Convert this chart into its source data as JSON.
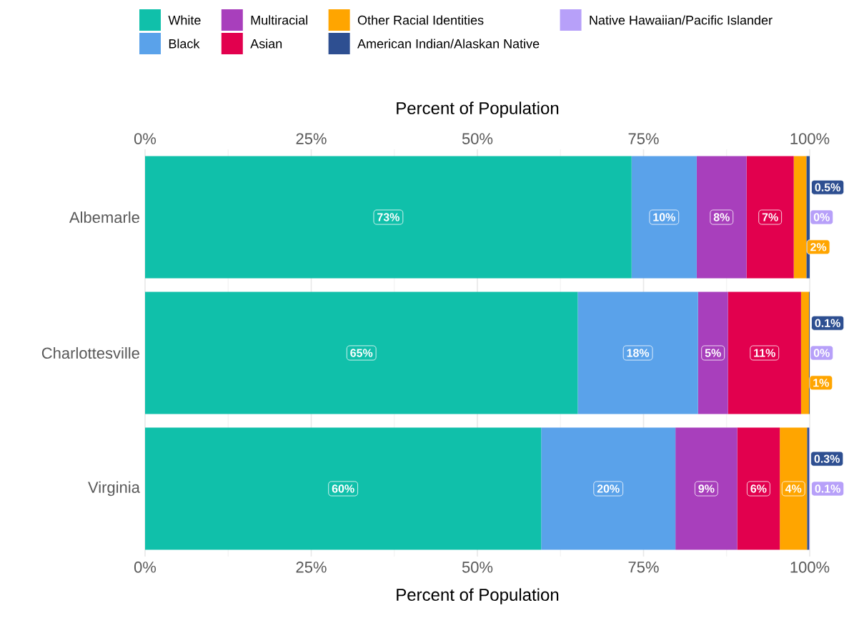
{
  "chart_data": {
    "type": "bar",
    "orientation": "horizontal",
    "stacked": true,
    "categories": [
      "Albemarle",
      "Charlottesville",
      "Virginia"
    ],
    "xlabel": "Percent of Population",
    "x2label": "Percent of Population",
    "xlim": [
      0,
      100
    ],
    "xticks": [
      {
        "value": 0,
        "label": "0%"
      },
      {
        "value": 25,
        "label": "25%"
      },
      {
        "value": 50,
        "label": "50%"
      },
      {
        "value": 75,
        "label": "75%"
      },
      {
        "value": 100,
        "label": "100%"
      }
    ],
    "x2lim": [
      0,
      100
    ],
    "x2ticks": [
      {
        "value": 0,
        "label": "0%"
      },
      {
        "value": 25,
        "label": "25%"
      },
      {
        "value": 50,
        "label": "50%"
      },
      {
        "value": 75,
        "label": "75%"
      },
      {
        "value": 100,
        "label": "100%"
      }
    ],
    "grid": "x",
    "legend": "top",
    "series": [
      {
        "name": "White",
        "color": "#10c0aa",
        "values": [
          73.2,
          65.1,
          59.6
        ],
        "value_labels": [
          "73%",
          "65%",
          "60%"
        ]
      },
      {
        "name": "Black",
        "color": "#5aa2ea",
        "values": [
          9.8,
          18.1,
          20.2
        ],
        "value_labels": [
          "10%",
          "18%",
          "20%"
        ]
      },
      {
        "name": "Multiracial",
        "color": "#a83fbc",
        "values": [
          7.5,
          4.5,
          9.3
        ],
        "value_labels": [
          "8%",
          "5%",
          "9%"
        ]
      },
      {
        "name": "Asian",
        "color": "#e2004e",
        "values": [
          7.1,
          11.0,
          6.4
        ],
        "value_labels": [
          "7%",
          "11%",
          "6%"
        ]
      },
      {
        "name": "Other Racial Identities",
        "color": "#ffa500",
        "values": [
          1.9,
          1.2,
          4.1
        ],
        "value_labels": [
          "2%",
          "1%",
          "4%"
        ]
      },
      {
        "name": "American Indian/Alaskan Native",
        "color": "#2e4f91",
        "values": [
          0.5,
          0.1,
          0.3
        ],
        "value_labels": [
          "0.5%",
          "0.1%",
          "0.3%"
        ]
      },
      {
        "name": "Native Hawaiian/Pacific Islander",
        "color": "#b7a0f9",
        "values": [
          0,
          0,
          0.1
        ],
        "value_labels": [
          "0%",
          "0%",
          "0.1%"
        ]
      }
    ]
  }
}
